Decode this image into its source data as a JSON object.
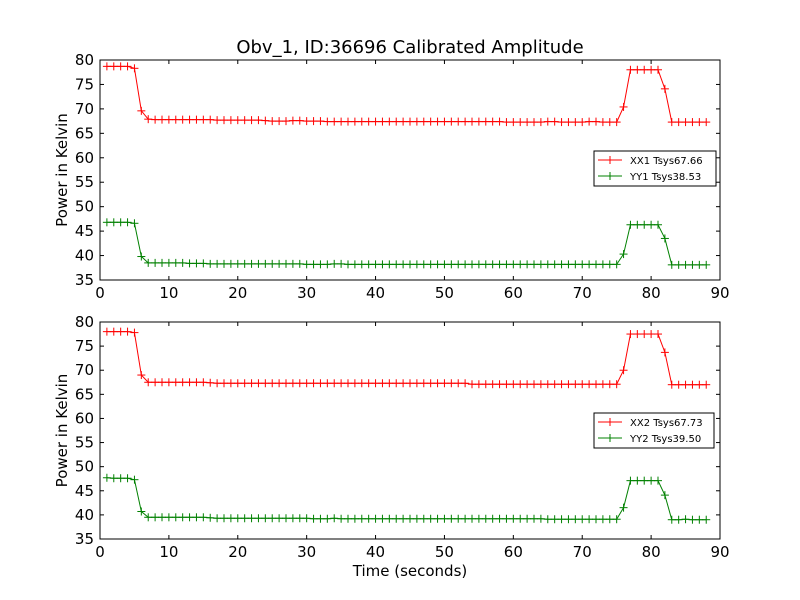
{
  "figure": {
    "title": "Obv_1, ID:36696 Calibrated Amplitude",
    "xlabel": "Time (seconds)"
  },
  "colors": {
    "xx": "#ff0000",
    "yy": "#008000"
  },
  "chart_data": [
    {
      "type": "line",
      "ylabel": "Power in Kelvin",
      "xlim": [
        0,
        90
      ],
      "ylim": [
        35,
        80
      ],
      "xticks": [
        "0",
        "10",
        "20",
        "30",
        "40",
        "50",
        "60",
        "70",
        "80",
        "90"
      ],
      "yticks": [
        "35",
        "40",
        "45",
        "50",
        "55",
        "60",
        "65",
        "70",
        "75",
        "80"
      ],
      "legend_position": "center-right",
      "x": [
        1,
        2,
        3,
        4,
        5,
        6,
        7,
        8,
        9,
        10,
        11,
        12,
        13,
        14,
        15,
        16,
        17,
        18,
        19,
        20,
        21,
        22,
        23,
        24,
        25,
        26,
        27,
        28,
        29,
        30,
        31,
        32,
        33,
        34,
        35,
        36,
        37,
        38,
        39,
        40,
        41,
        42,
        43,
        44,
        45,
        46,
        47,
        48,
        49,
        50,
        51,
        52,
        53,
        54,
        55,
        56,
        57,
        58,
        59,
        60,
        61,
        62,
        63,
        64,
        65,
        66,
        67,
        68,
        69,
        70,
        71,
        72,
        73,
        74,
        75,
        76,
        77,
        78,
        79,
        80,
        81,
        82,
        83,
        84,
        85,
        86,
        87,
        88
      ],
      "series": [
        {
          "name": "XX1 Tsys67.66",
          "color": "#ff0000",
          "values": [
            78.7,
            78.7,
            78.7,
            78.7,
            78.3,
            69.6,
            67.9,
            67.8,
            67.8,
            67.8,
            67.8,
            67.8,
            67.8,
            67.8,
            67.8,
            67.8,
            67.7,
            67.7,
            67.7,
            67.7,
            67.7,
            67.7,
            67.7,
            67.6,
            67.5,
            67.5,
            67.5,
            67.6,
            67.6,
            67.5,
            67.5,
            67.5,
            67.4,
            67.4,
            67.4,
            67.4,
            67.4,
            67.4,
            67.4,
            67.4,
            67.4,
            67.4,
            67.4,
            67.4,
            67.4,
            67.4,
            67.4,
            67.4,
            67.4,
            67.4,
            67.4,
            67.4,
            67.4,
            67.4,
            67.4,
            67.4,
            67.4,
            67.4,
            67.3,
            67.3,
            67.3,
            67.3,
            67.3,
            67.3,
            67.4,
            67.4,
            67.3,
            67.3,
            67.3,
            67.3,
            67.4,
            67.4,
            67.3,
            67.3,
            67.3,
            70.4,
            78.0,
            78.0,
            78.0,
            78.0,
            78.0,
            74.1,
            67.3,
            67.3,
            67.3,
            67.3,
            67.3,
            67.3
          ]
        },
        {
          "name": "YY1 Tsys38.53",
          "color": "#008000",
          "values": [
            46.8,
            46.8,
            46.8,
            46.8,
            46.6,
            39.8,
            38.5,
            38.5,
            38.5,
            38.5,
            38.5,
            38.5,
            38.4,
            38.4,
            38.4,
            38.3,
            38.3,
            38.3,
            38.3,
            38.3,
            38.3,
            38.3,
            38.3,
            38.3,
            38.3,
            38.3,
            38.3,
            38.3,
            38.3,
            38.2,
            38.2,
            38.2,
            38.2,
            38.3,
            38.3,
            38.2,
            38.2,
            38.2,
            38.2,
            38.2,
            38.2,
            38.2,
            38.2,
            38.2,
            38.2,
            38.2,
            38.2,
            38.2,
            38.2,
            38.2,
            38.2,
            38.2,
            38.2,
            38.2,
            38.2,
            38.2,
            38.2,
            38.2,
            38.2,
            38.2,
            38.2,
            38.2,
            38.2,
            38.2,
            38.2,
            38.2,
            38.2,
            38.2,
            38.2,
            38.2,
            38.2,
            38.2,
            38.2,
            38.2,
            38.2,
            40.3,
            46.3,
            46.3,
            46.3,
            46.3,
            46.3,
            43.5,
            38.1,
            38.1,
            38.1,
            38.1,
            38.1,
            38.1
          ]
        }
      ]
    },
    {
      "type": "line",
      "ylabel": "Power in Kelvin",
      "xlabel": "Time (seconds)",
      "xlim": [
        0,
        90
      ],
      "ylim": [
        35,
        80
      ],
      "xticks": [
        "0",
        "10",
        "20",
        "30",
        "40",
        "50",
        "60",
        "70",
        "80",
        "90"
      ],
      "yticks": [
        "35",
        "40",
        "45",
        "50",
        "55",
        "60",
        "65",
        "70",
        "75",
        "80"
      ],
      "legend_position": "center-right",
      "x": [
        1,
        2,
        3,
        4,
        5,
        6,
        7,
        8,
        9,
        10,
        11,
        12,
        13,
        14,
        15,
        16,
        17,
        18,
        19,
        20,
        21,
        22,
        23,
        24,
        25,
        26,
        27,
        28,
        29,
        30,
        31,
        32,
        33,
        34,
        35,
        36,
        37,
        38,
        39,
        40,
        41,
        42,
        43,
        44,
        45,
        46,
        47,
        48,
        49,
        50,
        51,
        52,
        53,
        54,
        55,
        56,
        57,
        58,
        59,
        60,
        61,
        62,
        63,
        64,
        65,
        66,
        67,
        68,
        69,
        70,
        71,
        72,
        73,
        74,
        75,
        76,
        77,
        78,
        79,
        80,
        81,
        82,
        83,
        84,
        85,
        86,
        87,
        88
      ],
      "series": [
        {
          "name": "XX2 Tsys67.73",
          "color": "#ff0000",
          "values": [
            78.0,
            78.0,
            78.0,
            78.0,
            77.8,
            69.0,
            67.5,
            67.5,
            67.5,
            67.5,
            67.5,
            67.5,
            67.5,
            67.5,
            67.5,
            67.4,
            67.3,
            67.3,
            67.3,
            67.3,
            67.3,
            67.3,
            67.3,
            67.3,
            67.3,
            67.3,
            67.3,
            67.3,
            67.3,
            67.3,
            67.3,
            67.3,
            67.3,
            67.3,
            67.3,
            67.3,
            67.3,
            67.3,
            67.3,
            67.3,
            67.3,
            67.3,
            67.3,
            67.3,
            67.3,
            67.3,
            67.3,
            67.3,
            67.3,
            67.3,
            67.3,
            67.3,
            67.3,
            67.1,
            67.1,
            67.1,
            67.1,
            67.1,
            67.1,
            67.1,
            67.1,
            67.1,
            67.1,
            67.1,
            67.1,
            67.1,
            67.1,
            67.1,
            67.1,
            67.1,
            67.1,
            67.1,
            67.1,
            67.1,
            67.1,
            70.0,
            77.5,
            77.5,
            77.5,
            77.5,
            77.5,
            73.7,
            67.0,
            67.0,
            67.0,
            67.0,
            67.0,
            67.0
          ]
        },
        {
          "name": "YY2 Tsys39.50",
          "color": "#008000",
          "values": [
            47.7,
            47.6,
            47.6,
            47.6,
            47.3,
            40.7,
            39.5,
            39.5,
            39.5,
            39.5,
            39.5,
            39.5,
            39.5,
            39.5,
            39.5,
            39.4,
            39.3,
            39.3,
            39.3,
            39.3,
            39.3,
            39.3,
            39.3,
            39.3,
            39.3,
            39.3,
            39.3,
            39.3,
            39.3,
            39.3,
            39.2,
            39.2,
            39.2,
            39.3,
            39.2,
            39.2,
            39.2,
            39.2,
            39.2,
            39.2,
            39.2,
            39.2,
            39.2,
            39.2,
            39.2,
            39.2,
            39.2,
            39.2,
            39.2,
            39.2,
            39.2,
            39.2,
            39.2,
            39.2,
            39.2,
            39.2,
            39.2,
            39.2,
            39.2,
            39.2,
            39.2,
            39.2,
            39.2,
            39.2,
            39.1,
            39.1,
            39.1,
            39.1,
            39.1,
            39.1,
            39.1,
            39.1,
            39.1,
            39.1,
            39.1,
            41.5,
            47.1,
            47.1,
            47.1,
            47.1,
            47.1,
            44.1,
            39.0,
            39.0,
            39.1,
            39.0,
            39.0,
            39.0
          ]
        }
      ]
    }
  ]
}
